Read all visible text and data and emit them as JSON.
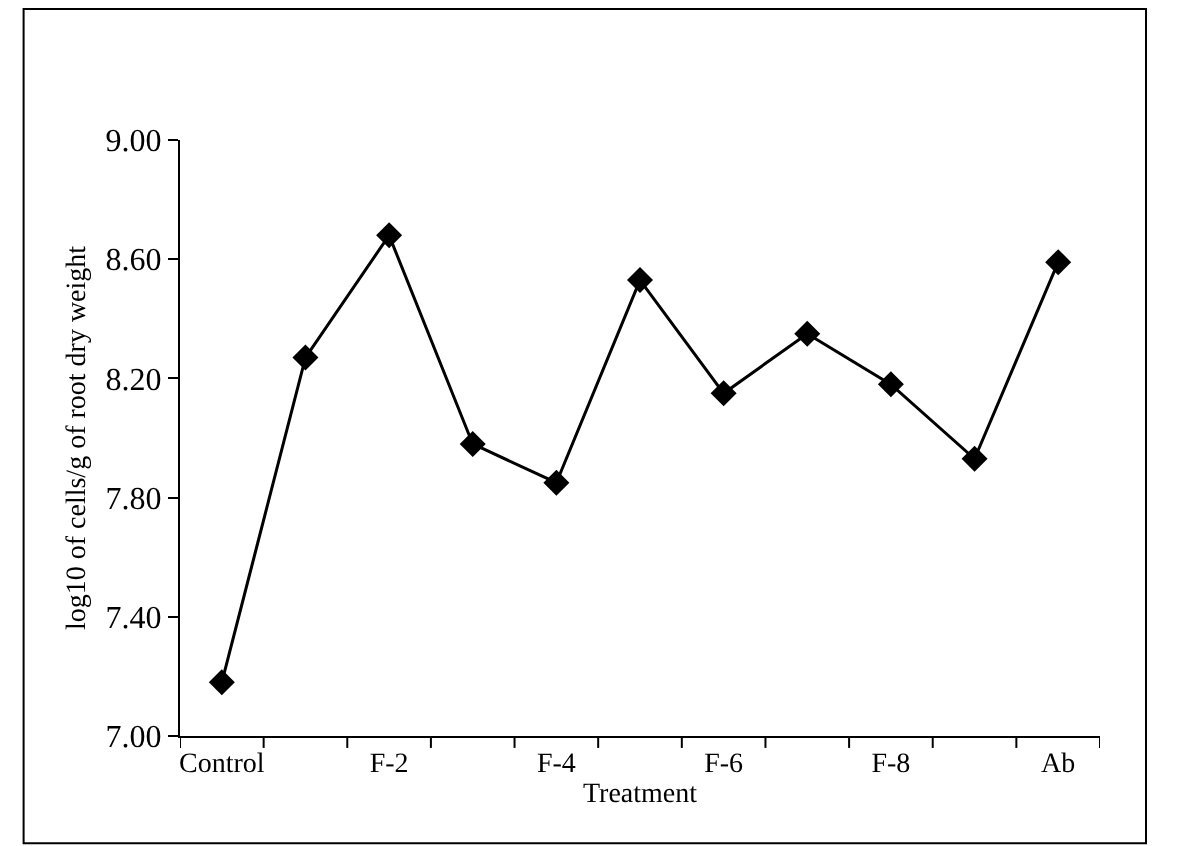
{
  "chart_data": {
    "type": "line",
    "xlabel": "Treatment",
    "ylabel": "log10 of cells/g of root dry weight",
    "categories": [
      "Control",
      null,
      "F-2",
      null,
      "F-4",
      null,
      "F-6",
      null,
      "F-8",
      null,
      "Ab"
    ],
    "series": [
      {
        "color": "#000000",
        "values": [
          7.18,
          8.27,
          8.68,
          7.98,
          7.85,
          8.53,
          8.15,
          8.35,
          8.18,
          7.93,
          8.59
        ]
      }
    ],
    "ylim": [
      7.0,
      9.0
    ],
    "yticks": [
      {
        "value": 7.0,
        "label": "7.00"
      },
      {
        "value": 7.4,
        "label": "7.40"
      },
      {
        "value": 7.8,
        "label": "7.80"
      },
      {
        "value": 8.2,
        "label": "8.20"
      },
      {
        "value": 8.6,
        "label": "8.60"
      },
      {
        "value": 9.0,
        "label": "9.00"
      }
    ],
    "marker": "diamond",
    "line_style": "solid",
    "legend": false
  }
}
